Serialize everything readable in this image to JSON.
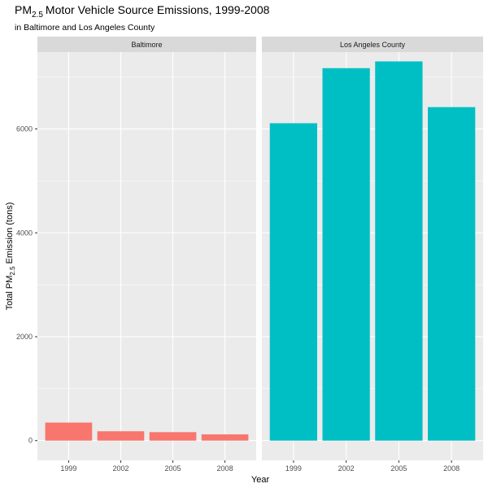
{
  "chart_data": {
    "type": "bar",
    "title": "Motor Vehicle Source Emissions, 1999-2008",
    "title_prefix": "PM",
    "title_subscript": "2.5",
    "subtitle": "in Baltimore and Los Angeles County",
    "xlabel": "Year",
    "ylabel_prefix": "Total PM",
    "ylabel_subscript": "2.5",
    "ylabel_suffix": " Emission (tons)",
    "ylim": [
      -380,
      7480
    ],
    "yticks": [
      0,
      2000,
      4000,
      6000
    ],
    "ytick_labels": [
      "0",
      "2000",
      "4000",
      "6000"
    ],
    "grid": true,
    "legend": "none",
    "categories": [
      "1999",
      "2002",
      "2005",
      "2008"
    ],
    "facets": [
      {
        "name": "Baltimore",
        "color": "#F8766D",
        "values": [
          347,
          180,
          163,
          120
        ]
      },
      {
        "name": "Los Angeles County",
        "color": "#00BFC4",
        "values": [
          6110,
          7170,
          7300,
          6420
        ]
      }
    ]
  },
  "colors": {
    "panel_background": "#EBEBEB",
    "strip_background": "#D9D9D9",
    "grid": "#FFFFFF",
    "text": "#4D4D4D",
    "title": "#000000"
  }
}
